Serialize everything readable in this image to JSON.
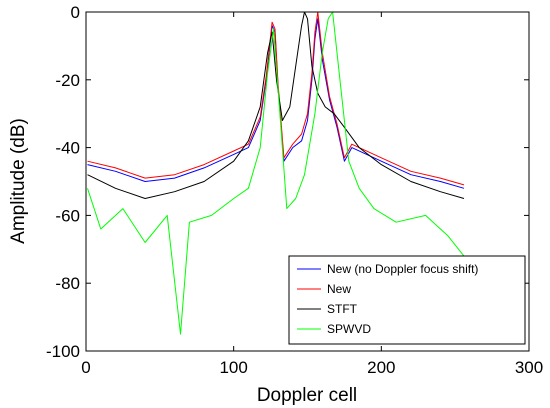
{
  "chart_data": {
    "type": "line",
    "xlabel": "Doppler cell",
    "ylabel": "Amplitude (dB)",
    "xlim": [
      0,
      300
    ],
    "ylim": [
      -100,
      0
    ],
    "xticks": [
      "0",
      "100",
      "200",
      "300"
    ],
    "yticks": [
      "0",
      "-20",
      "-40",
      "-60",
      "-80",
      "-100"
    ],
    "grid": false,
    "legend_position": "bottom-right",
    "series": [
      {
        "name": "New (no Doppler focus shift)",
        "color": "#0000ff",
        "x": [
          1,
          20,
          40,
          60,
          80,
          100,
          110,
          118,
          122,
          126,
          128,
          130,
          134,
          140,
          146,
          150,
          153,
          155,
          157,
          160,
          165,
          170,
          175,
          180,
          200,
          220,
          240,
          256
        ],
        "y": [
          -45,
          -47,
          -50,
          -49,
          -46,
          -42,
          -40,
          -32,
          -20,
          -4,
          -6,
          -22,
          -44,
          -40,
          -38,
          -32,
          -20,
          -8,
          -2,
          -14,
          -26,
          -34,
          -44,
          -40,
          -44,
          -48,
          -50,
          -52
        ]
      },
      {
        "name": "New",
        "color": "#ff0000",
        "x": [
          1,
          20,
          40,
          60,
          80,
          100,
          110,
          118,
          122,
          126,
          128,
          130,
          134,
          140,
          146,
          150,
          153,
          155,
          157,
          160,
          165,
          170,
          175,
          180,
          200,
          220,
          240,
          256
        ],
        "y": [
          -44,
          -46,
          -49,
          -48,
          -45,
          -41,
          -39,
          -31,
          -19,
          -3,
          -5,
          -21,
          -43,
          -39,
          -36,
          -30,
          -18,
          -6,
          0,
          -12,
          -25,
          -33,
          -43,
          -39,
          -43,
          -47,
          -49,
          -51
        ]
      },
      {
        "name": "STFT",
        "color": "#000000",
        "x": [
          1,
          20,
          40,
          60,
          80,
          100,
          110,
          118,
          123,
          126,
          129,
          133,
          138,
          142,
          146,
          148,
          150,
          153,
          157,
          162,
          168,
          175,
          185,
          200,
          220,
          240,
          256
        ],
        "y": [
          -48,
          -52,
          -55,
          -53,
          -50,
          -44,
          -38,
          -28,
          -12,
          -6,
          -20,
          -32,
          -28,
          -16,
          -4,
          0,
          -2,
          -16,
          -24,
          -28,
          -30,
          -34,
          -40,
          -45,
          -50,
          -53,
          -55
        ]
      },
      {
        "name": "SPWVD",
        "color": "#00ff00",
        "x": [
          1,
          10,
          25,
          40,
          55,
          64,
          70,
          85,
          100,
          110,
          118,
          123,
          127,
          131,
          136,
          142,
          148,
          155,
          160,
          164,
          167,
          170,
          174,
          178,
          185,
          195,
          210,
          230,
          245,
          256
        ],
        "y": [
          -52,
          -64,
          -58,
          -68,
          -60,
          -95,
          -62,
          -60,
          -55,
          -52,
          -40,
          -18,
          -5,
          -28,
          -58,
          -55,
          -48,
          -30,
          -12,
          -2,
          0,
          -12,
          -28,
          -44,
          -52,
          -58,
          -62,
          -60,
          -66,
          -72
        ]
      }
    ]
  }
}
